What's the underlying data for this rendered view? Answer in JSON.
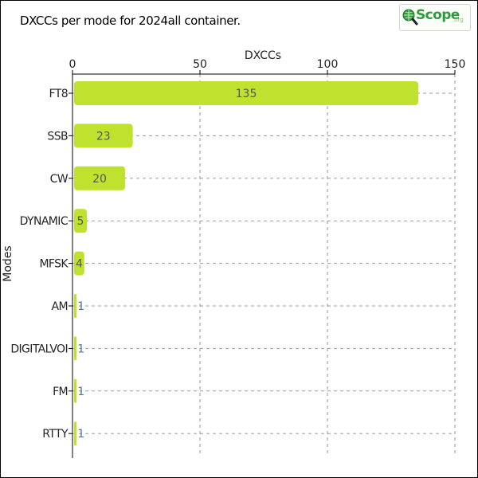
{
  "title": "DXCCs per mode for 2024all container.",
  "logo": {
    "text": "Scope",
    "suffix": ".org"
  },
  "colors": {
    "bar": "#bfe22e",
    "grid": "#9a9a9a",
    "value_text": "#555555",
    "value_text_small": "#4d7a8a"
  },
  "chart_data": {
    "type": "bar",
    "orientation": "horizontal",
    "title": "DXCCs per mode for 2024all container.",
    "xlabel": "DXCCs",
    "ylabel": "Modes",
    "xaxis_position": "top",
    "xlim": [
      0,
      150
    ],
    "xticks": [
      0,
      50,
      100,
      150
    ],
    "grid": true,
    "categories": [
      "FT8",
      "SSB",
      "CW",
      "DYNAMIC",
      "MFSK",
      "AM",
      "DIGITALVOI",
      "FM",
      "RTTY"
    ],
    "values": [
      135,
      23,
      20,
      5,
      4,
      1,
      1,
      1,
      1
    ]
  }
}
